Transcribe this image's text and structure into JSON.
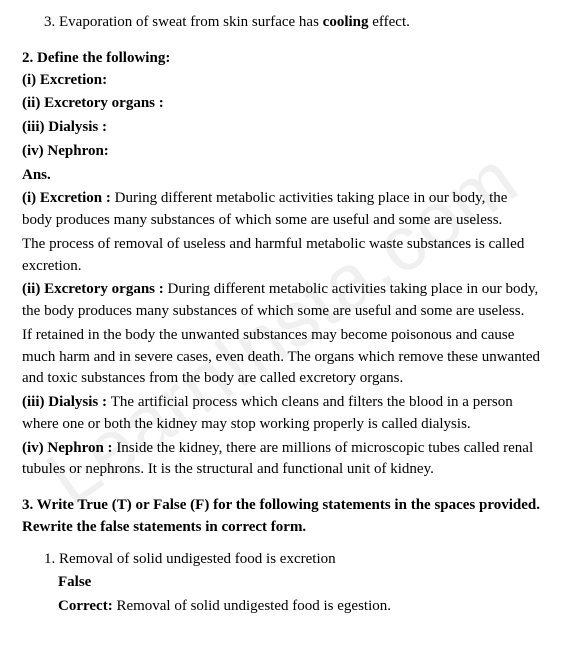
{
  "item3": {
    "num": "3.",
    "text_before": "Evaporation of sweat from skin surface has ",
    "bold": "cooling",
    "text_after": " effect."
  },
  "q2": {
    "head": "2. Define the following:",
    "i": "(i) Excretion:",
    "ii": "(ii) Excretory organs :",
    "iii": "(iii) Dialysis :",
    "iv": "(iv) Nephron:",
    "ans": "Ans."
  },
  "a1": {
    "label": "(i) Excretion : ",
    "p1": "During different metabolic activities taking place in our body, the body produces many substances of which some are useful and some are useless.",
    "p2": "The process of removal of useless and harmful metabolic waste substances is called excretion."
  },
  "a2": {
    "label": "(ii) Excretory organs : ",
    "p1": "During different metabolic activities taking place in our body, the body produces many substances of which some are useful and some are useless.",
    "p2": "If retained in the body the unwanted substances may become poisonous and cause much harm and in severe cases, even death. The organs which remove these unwanted and toxic substances from the body are called excretory organs."
  },
  "a3": {
    "label": "(iii) Dialysis : ",
    "p1": "The artificial process which cleans and filters the blood in a person where one or both the kidney may stop working properly is called dialysis."
  },
  "a4": {
    "label": "(iv) Nephron : ",
    "p1": "Inside the kidney, there are millions of microscopic tubes called renal tubules or nephrons. It is the structural and functional unit of kidney."
  },
  "q3": {
    "head": "3. Write True (T) or False (F) for the following statements in the spaces provided. Rewrite the false statements in correct form."
  },
  "q3a": {
    "num": "1.",
    "stmt": "Removal of solid undigested food is excretion",
    "false": "False",
    "correct_label": "Correct:",
    "correct_text": " Removal of solid undigested food is egestion."
  }
}
